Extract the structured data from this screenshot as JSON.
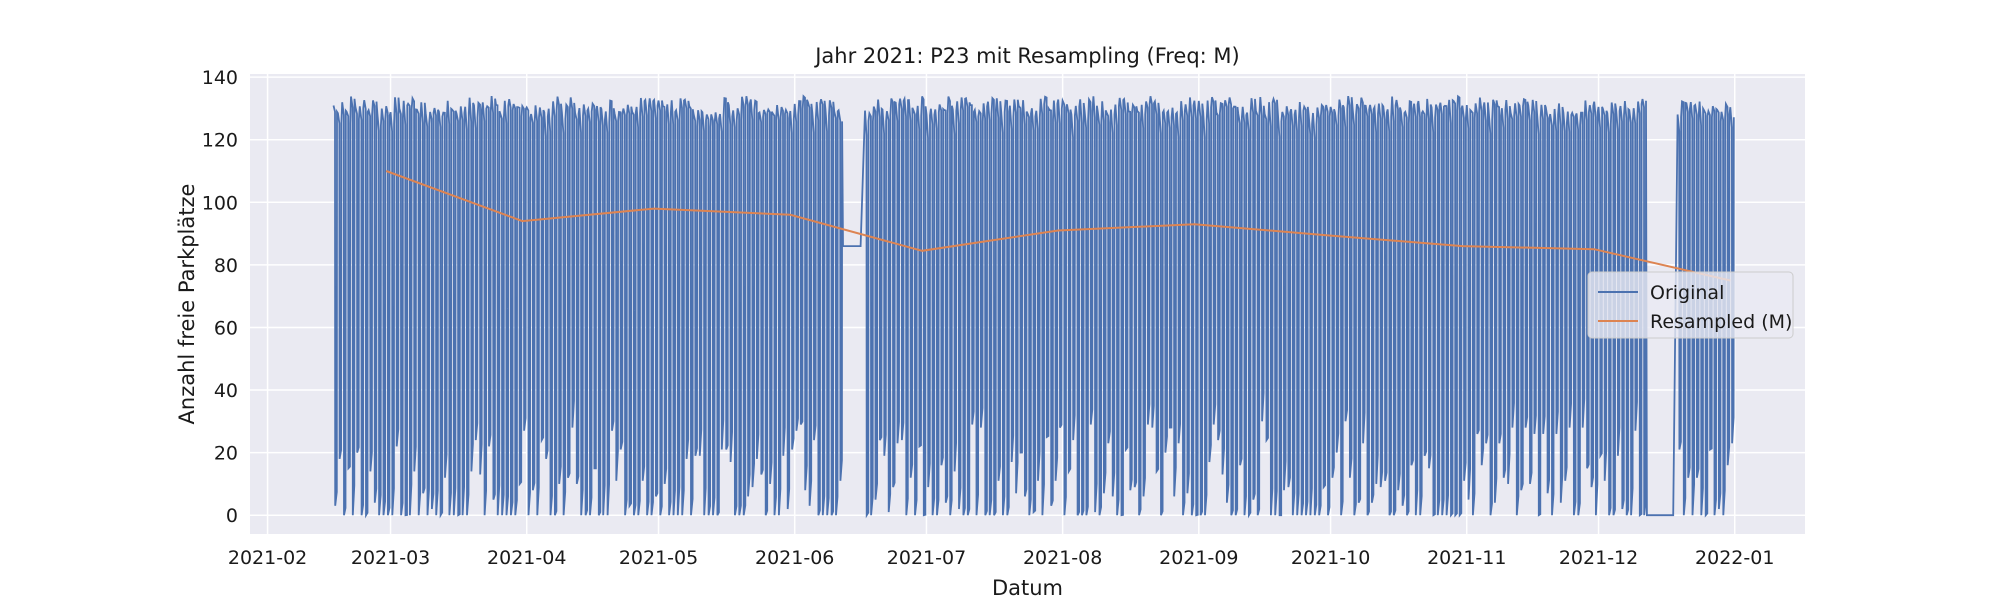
{
  "chart_data": {
    "type": "line",
    "title": "Jahr 2021: P23 mit Resampling (Freq: M)",
    "xlabel": "Datum",
    "ylabel": "Anzahl freie Parkplätze",
    "xlim": [
      "2021-01-28",
      "2022-01-17"
    ],
    "ylim": [
      -6,
      141
    ],
    "x_ticks": [
      "2021-02",
      "2021-03",
      "2021-04",
      "2021-05",
      "2021-06",
      "2021-07",
      "2021-08",
      "2021-09",
      "2021-10",
      "2021-11",
      "2021-12",
      "2022-01"
    ],
    "y_ticks": [
      0,
      20,
      40,
      60,
      80,
      100,
      120,
      140
    ],
    "grid": true,
    "legend_position": "center-right",
    "series": [
      {
        "name": "Original",
        "color": "#4c72b0",
        "x_range": [
          "2021-02-16",
          "2021-12-31"
        ],
        "y_range": [
          0,
          134
        ],
        "pattern": "daily oscillation between near 0 and near 132 free spaces",
        "flat_segments": [
          {
            "x": [
              "2021-06-12",
              "2021-06-16"
            ],
            "y": 86
          },
          {
            "x": [
              "2021-12-12",
              "2021-12-18"
            ],
            "y": 0
          }
        ]
      },
      {
        "name": "Resampled (M)",
        "color": "#dd8452",
        "x": [
          "2021-02-28",
          "2021-03-31",
          "2021-04-30",
          "2021-05-31",
          "2021-06-30",
          "2021-07-31",
          "2021-08-31",
          "2021-09-30",
          "2021-10-31",
          "2021-11-30",
          "2021-12-31"
        ],
        "y": [
          110,
          94,
          98,
          96,
          84.5,
          91,
          93,
          89.5,
          86,
          85,
          75
        ]
      }
    ]
  }
}
